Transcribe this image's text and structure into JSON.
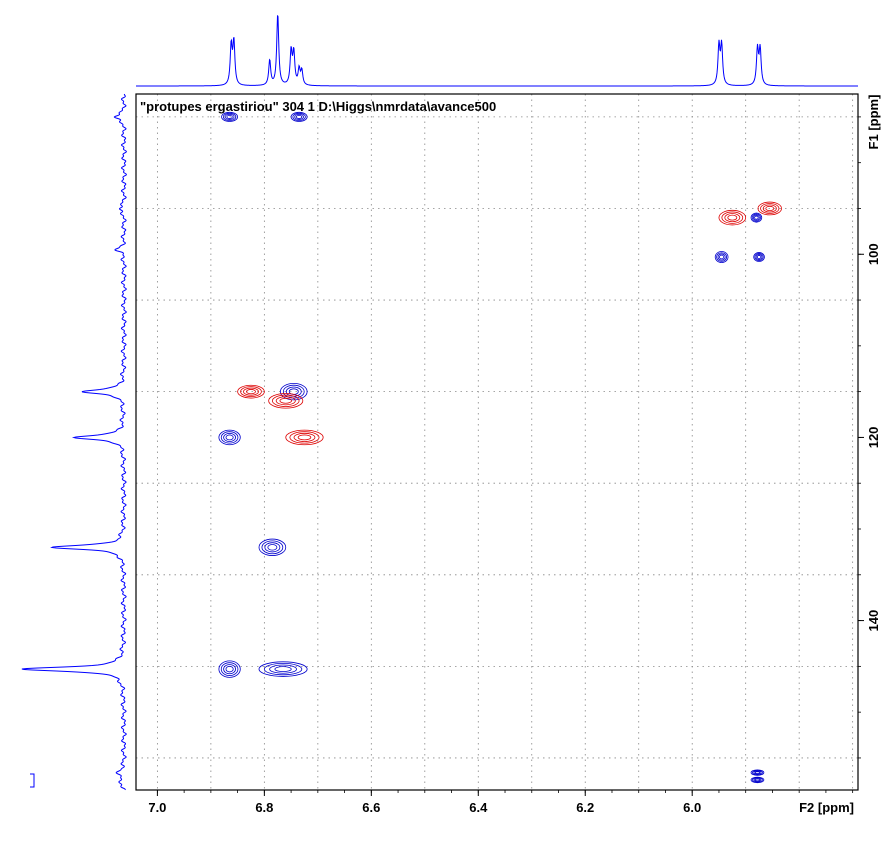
{
  "chart_data": {
    "type": "contour",
    "title": "\"protupes ergastiriou\"  304  1  D:\\Higgs\\nmrdata\\avance500",
    "xlabel": "F2 [ppm]",
    "ylabel": "F1 [ppm]",
    "x_ticks": [
      "7.0",
      "6.8",
      "6.6",
      "6.4",
      "6.2",
      "6.0"
    ],
    "y_ticks": [
      "100",
      "120",
      "140"
    ],
    "xlim": [
      7.04,
      5.69
    ],
    "ylim": [
      82.5,
      158.5
    ],
    "grid": true,
    "colors": {
      "positive": "#0000cc",
      "negative": "#dd0000",
      "projection": "#0000ff"
    },
    "series": [
      {
        "name": "",
        "color": "#0000cc",
        "peaks": [
          {
            "x": 6.865,
            "y": 85.0,
            "w": 0.015,
            "h": 0.5
          },
          {
            "x": 6.735,
            "y": 85.0,
            "w": 0.015,
            "h": 0.5
          },
          {
            "x": 5.945,
            "y": 100.3,
            "w": 0.012,
            "h": 0.6
          },
          {
            "x": 5.875,
            "y": 100.3,
            "w": 0.01,
            "h": 0.5
          },
          {
            "x": 5.88,
            "y": 96.0,
            "w": 0.01,
            "h": 0.5
          },
          {
            "x": 6.745,
            "y": 115.0,
            "w": 0.025,
            "h": 0.9
          },
          {
            "x": 6.865,
            "y": 120.0,
            "w": 0.02,
            "h": 0.8
          },
          {
            "x": 6.785,
            "y": 132.0,
            "w": 0.025,
            "h": 0.9
          },
          {
            "x": 6.865,
            "y": 145.3,
            "w": 0.02,
            "h": 0.9
          },
          {
            "x": 6.765,
            "y": 145.3,
            "w": 0.045,
            "h": 0.8
          },
          {
            "x": 5.878,
            "y": 156.6,
            "w": 0.012,
            "h": 0.3
          },
          {
            "x": 5.878,
            "y": 157.4,
            "w": 0.012,
            "h": 0.3
          }
        ]
      },
      {
        "name": "",
        "color": "#dd0000",
        "peaks": [
          {
            "x": 5.925,
            "y": 96.0,
            "w": 0.025,
            "h": 0.8
          },
          {
            "x": 5.855,
            "y": 95.0,
            "w": 0.022,
            "h": 0.7
          },
          {
            "x": 6.825,
            "y": 115.0,
            "w": 0.025,
            "h": 0.7
          },
          {
            "x": 6.76,
            "y": 116.0,
            "w": 0.032,
            "h": 0.8
          },
          {
            "x": 6.725,
            "y": 120.0,
            "w": 0.035,
            "h": 0.8
          }
        ]
      }
    ],
    "f2_projection": {
      "peaks": [
        {
          "x": 6.862,
          "h": 0.55
        },
        {
          "x": 6.857,
          "h": 0.6
        },
        {
          "x": 6.79,
          "h": 0.35
        },
        {
          "x": 6.775,
          "h": 1.0
        },
        {
          "x": 6.75,
          "h": 0.47
        },
        {
          "x": 6.745,
          "h": 0.45
        },
        {
          "x": 6.735,
          "h": 0.22
        },
        {
          "x": 6.73,
          "h": 0.2
        },
        {
          "x": 5.95,
          "h": 0.55
        },
        {
          "x": 5.945,
          "h": 0.55
        },
        {
          "x": 5.878,
          "h": 0.5
        },
        {
          "x": 5.873,
          "h": 0.5
        }
      ]
    },
    "f1_projection": {
      "peaks": [
        {
          "y": 85.0,
          "h": 0.1
        },
        {
          "y": 95.0,
          "h": 0.05
        },
        {
          "y": 99.5,
          "h": 0.07
        },
        {
          "y": 115.0,
          "h": 0.42
        },
        {
          "y": 120.0,
          "h": 0.5
        },
        {
          "y": 132.0,
          "h": 0.7
        },
        {
          "y": 145.3,
          "h": 1.0
        },
        {
          "y": 156.5,
          "h": 0.06
        },
        {
          "y": 157.5,
          "h": 0.05
        }
      ]
    }
  }
}
